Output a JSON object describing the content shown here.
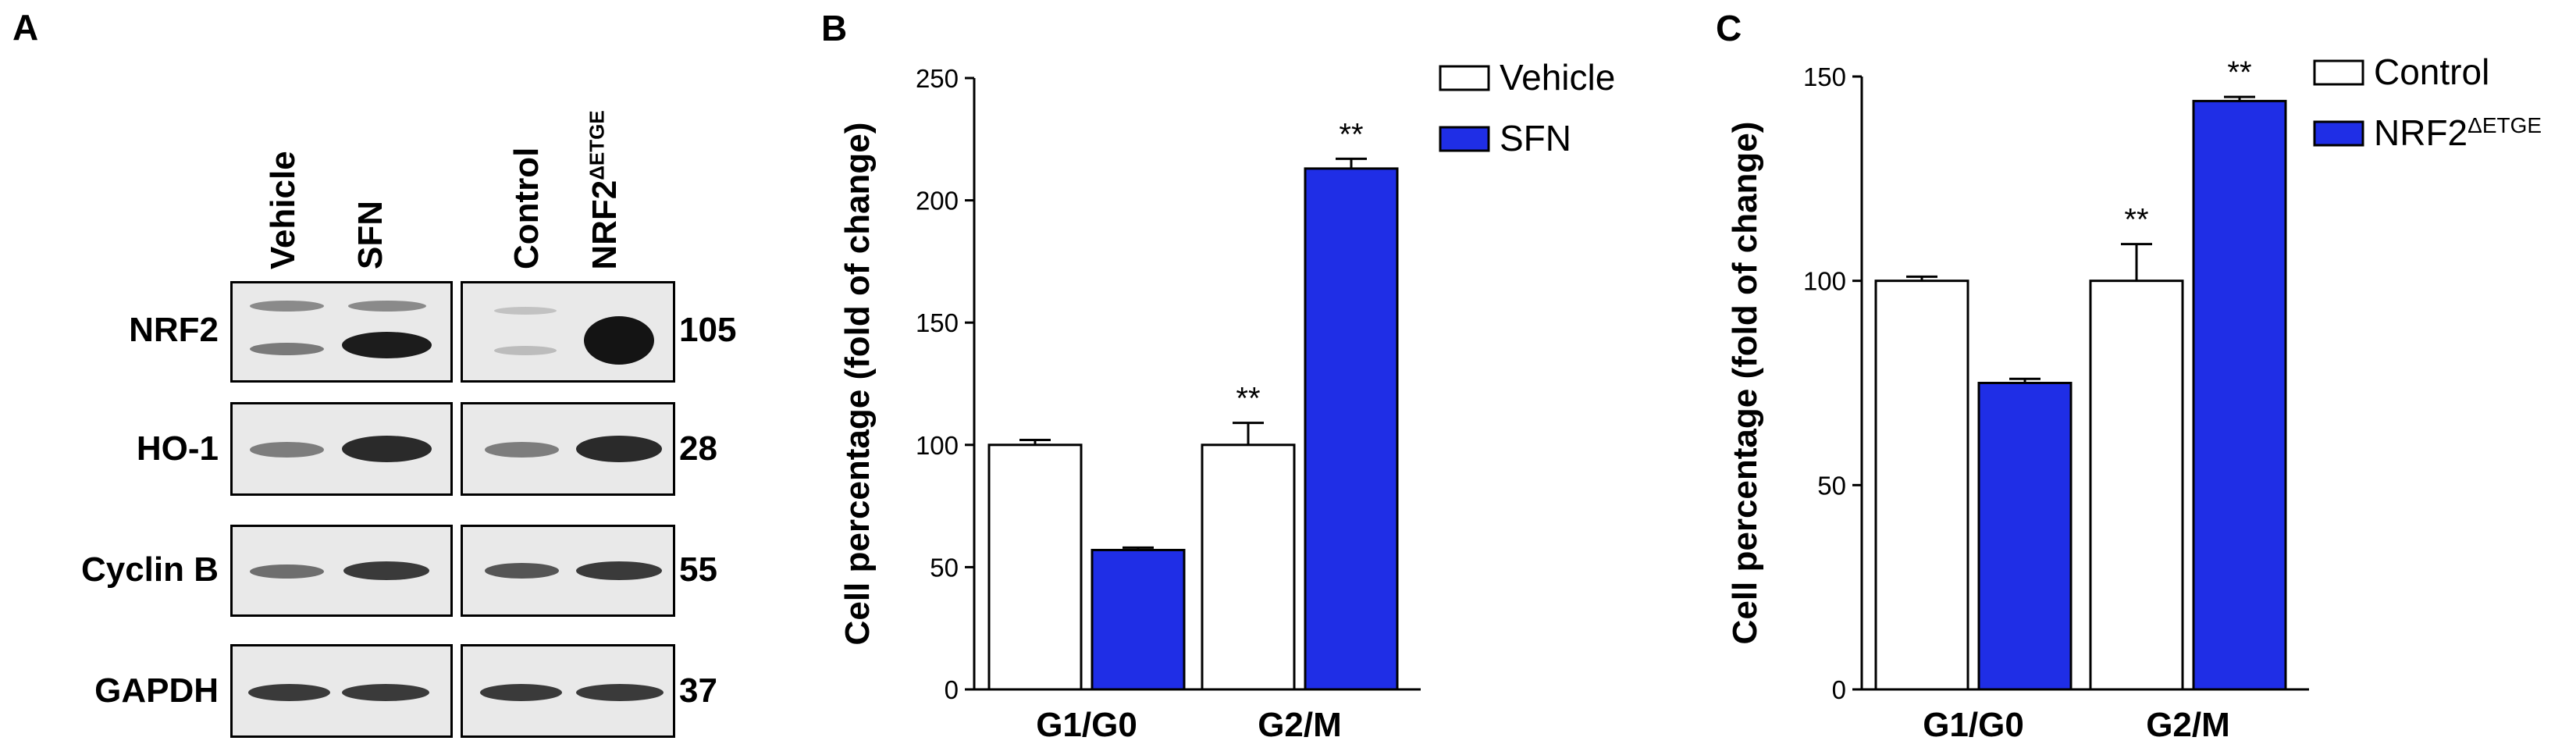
{
  "panel_a": {
    "letter": "A",
    "lanes_left": [
      "Vehicle",
      "SFN"
    ],
    "lanes_right": [
      "Control",
      "NRF2",
      "ΔETGE"
    ],
    "rows": [
      {
        "protein": "NRF2",
        "mw": "105"
      },
      {
        "protein": "HO-1",
        "mw": "28"
      },
      {
        "protein": "Cyclin B",
        "mw": "55"
      },
      {
        "protein": "GAPDH",
        "mw": "37"
      }
    ]
  },
  "chart_data": [
    {
      "panel": "B",
      "type": "bar",
      "categories": [
        "G1/G0",
        "G2/M"
      ],
      "series": [
        {
          "name": "Vehicle",
          "values": [
            100,
            100
          ],
          "errors": [
            2,
            9
          ],
          "color": "#ffffff"
        },
        {
          "name": "SFN",
          "values": [
            57,
            213
          ],
          "errors": [
            1,
            4
          ],
          "color": "#1f2ee6"
        }
      ],
      "significance": [
        "",
        "",
        "**",
        "**"
      ],
      "ylabel": "Cell percentage (fold of change)",
      "ylim": [
        0,
        250
      ],
      "yticks": [
        "0",
        "50",
        "100",
        "150",
        "200",
        "250"
      ],
      "legend_placement": "top-right"
    },
    {
      "panel": "C",
      "type": "bar",
      "categories": [
        "G1/G0",
        "G2/M"
      ],
      "series": [
        {
          "name": "Control",
          "values": [
            100,
            100
          ],
          "errors": [
            1,
            9
          ],
          "color": "#ffffff"
        },
        {
          "name": "NRF2",
          "name_sup": "ΔETGE",
          "values": [
            75,
            144
          ],
          "errors": [
            1,
            1
          ],
          "color": "#1f2ee6"
        }
      ],
      "significance": [
        "",
        "",
        "**",
        "**"
      ],
      "ylabel": "Cell percentage (fold of change)",
      "ylim": [
        0,
        150
      ],
      "yticks": [
        "0",
        "50",
        "100",
        "150"
      ],
      "legend_placement": "top-right"
    }
  ]
}
